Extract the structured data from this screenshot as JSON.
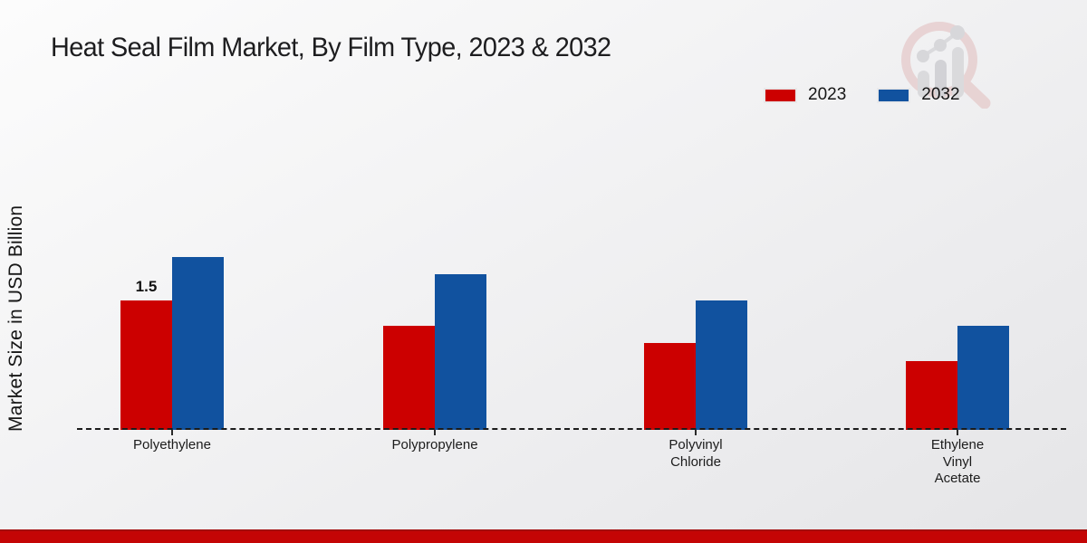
{
  "title": "Heat Seal Film Market, By Film Type, 2023 & 2032",
  "y_axis_label": "Market Size in USD Billion",
  "legend": {
    "items": [
      {
        "label": "2023",
        "color": "#cc0000"
      },
      {
        "label": "2032",
        "color": "#11529f"
      }
    ],
    "position": "top-right"
  },
  "chart_data": {
    "type": "bar",
    "title": "Heat Seal Film Market, By Film Type, 2023 & 2032",
    "xlabel": "",
    "ylabel": "Market Size in USD Billion",
    "categories": [
      "Polyethylene",
      "Polypropylene",
      "Polyvinyl Chloride",
      "Ethylene Vinyl Acetate"
    ],
    "category_display": [
      "Polyethylene",
      "Polypropylene",
      "Polyvinyl\nChloride",
      "Ethylene\nVinyl\nAcetate"
    ],
    "series": [
      {
        "name": "2023",
        "color": "#cc0000",
        "values": [
          1.5,
          1.2,
          1.0,
          0.8
        ],
        "data_labels": [
          "1.5",
          "",
          "",
          ""
        ]
      },
      {
        "name": "2032",
        "color": "#11529f",
        "values": [
          2.0,
          1.8,
          1.5,
          1.2
        ],
        "data_labels": [
          "",
          "",
          "",
          ""
        ]
      }
    ],
    "ylim": [
      0,
      2.2
    ],
    "y_axis_ticks_visible": false,
    "gridlines": false,
    "baseline_style": "dashed",
    "legend_position": "top-right"
  },
  "branding": {
    "footer_bar_color": "#c40505",
    "logo_name": "market-research-watermark-logo",
    "logo_colors": {
      "ring": "#e5caca",
      "bars": "#d3d3d6"
    }
  }
}
